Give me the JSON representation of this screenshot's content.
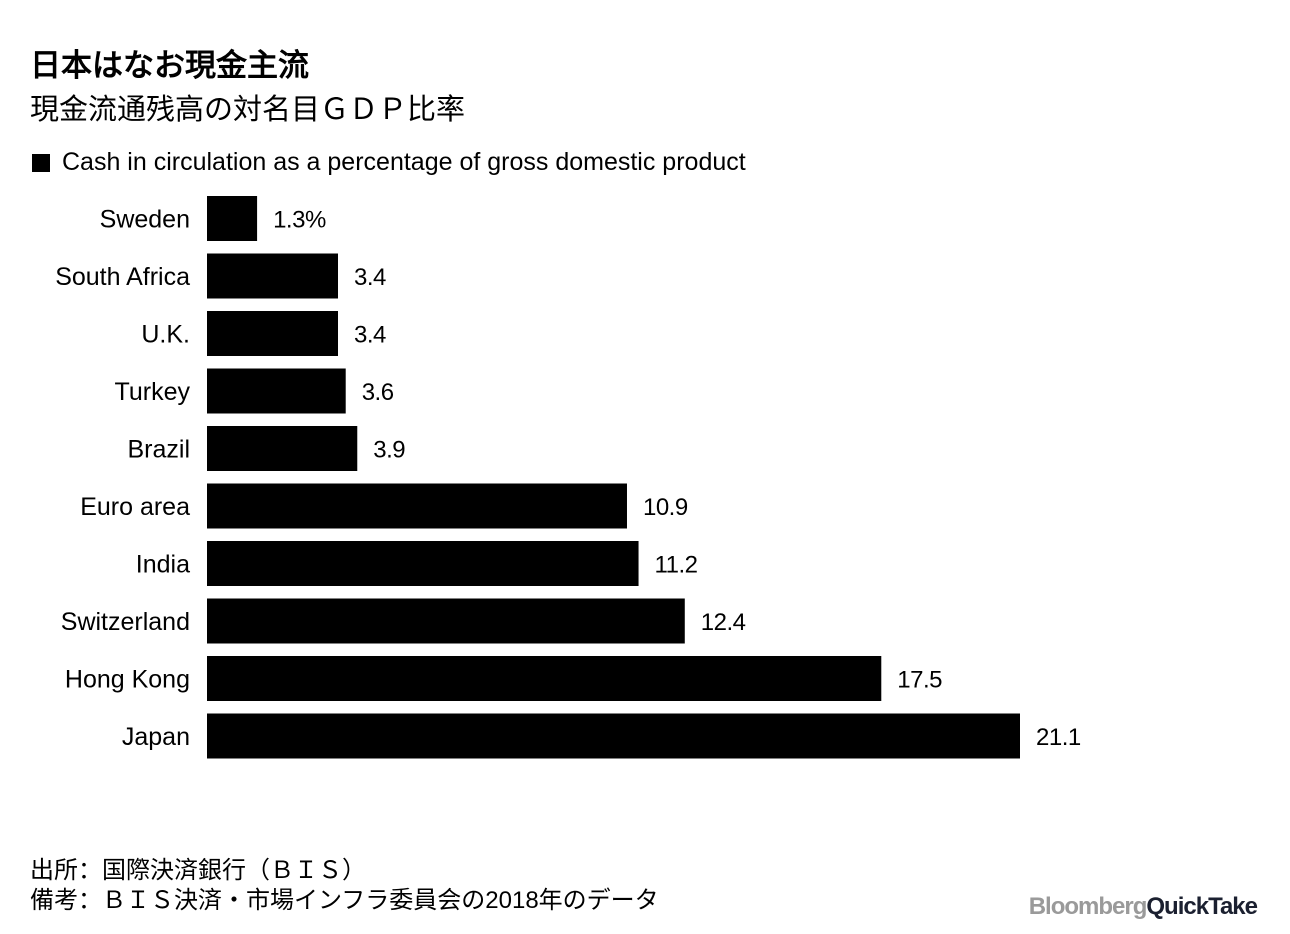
{
  "title": "日本はなお現金主流",
  "subtitle": "現金流通残高の対名目ＧＤＰ比率",
  "chart_data": {
    "type": "bar",
    "orientation": "horizontal",
    "legend": "Cash in circulation as a percentage of gross domestic product",
    "legend_placement": "top-left",
    "categories": [
      "Sweden",
      "South Africa",
      "U.K.",
      "Turkey",
      "Brazil",
      "Euro area",
      "India",
      "Switzerland",
      "Hong Kong",
      "Japan"
    ],
    "values": [
      1.3,
      3.4,
      3.4,
      3.6,
      3.9,
      10.9,
      11.2,
      12.4,
      17.5,
      21.1
    ],
    "data_labels": [
      "1.3%",
      "3.4",
      "3.4",
      "3.6",
      "3.9",
      "10.9",
      "11.2",
      "12.4",
      "17.5",
      "21.1"
    ],
    "bar_color": "#000000",
    "grid": false,
    "xlim": [
      0,
      21.1
    ]
  },
  "footer": {
    "source": "出所：国際決済銀行（ＢＩＳ）",
    "note": "備考：ＢＩＳ決済・市場インフラ委員会の2018年のデータ"
  },
  "logo": {
    "part1": "Bloomberg",
    "part2": "QuickTake"
  }
}
